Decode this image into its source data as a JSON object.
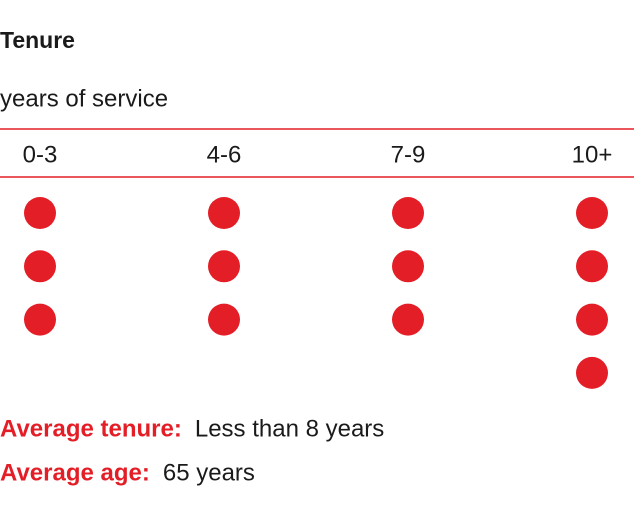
{
  "chart_data": {
    "type": "pictogram",
    "title": "Tenure",
    "subtitle": "years of service",
    "categories": [
      "0-3",
      "4-6",
      "7-9",
      "10+"
    ],
    "values": [
      3,
      3,
      3,
      4
    ],
    "color": "#e41e26",
    "annotations": [
      {
        "label": "Average tenure:",
        "text": "Less than 8 years"
      },
      {
        "label": "Average age:",
        "text": "65 years"
      }
    ]
  }
}
